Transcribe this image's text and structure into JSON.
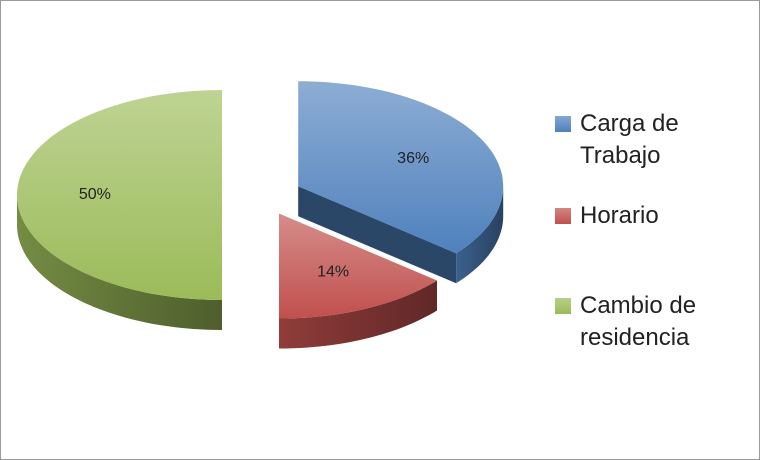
{
  "chart_data": {
    "type": "pie",
    "categories": [
      "Carga de Trabajo",
      "Horario",
      "Cambio de residencia"
    ],
    "values": [
      36,
      14,
      50
    ],
    "value_labels": [
      "36%",
      "14%",
      "50%"
    ],
    "colors": [
      "#4f81bd",
      "#c0504d",
      "#9bbb59"
    ],
    "legend": "right"
  }
}
